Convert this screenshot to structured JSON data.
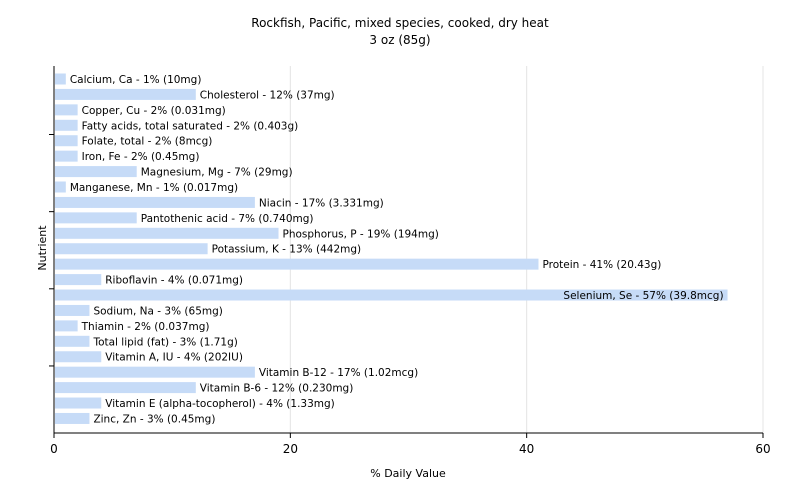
{
  "chart_data": {
    "type": "bar",
    "orientation": "horizontal",
    "title": "Rockfish, Pacific, mixed species, cooked, dry heat",
    "subtitle": "3 oz (85g)",
    "xlabel": "% Daily Value",
    "ylabel": "Nutrient",
    "xlim": [
      0,
      60
    ],
    "xticks": [
      0,
      20,
      40,
      60
    ],
    "grid": true,
    "bar_color": "#c6dbf7",
    "categories": [
      "Calcium, Ca",
      "Cholesterol",
      "Copper, Cu",
      "Fatty acids, total saturated",
      "Folate, total",
      "Iron, Fe",
      "Magnesium, Mg",
      "Manganese, Mn",
      "Niacin",
      "Pantothenic acid",
      "Phosphorus, P",
      "Potassium, K",
      "Protein",
      "Riboflavin",
      "Selenium, Se",
      "Sodium, Na",
      "Thiamin",
      "Total lipid (fat)",
      "Vitamin A, IU",
      "Vitamin B-12",
      "Vitamin B-6",
      "Vitamin E (alpha-tocopherol)",
      "Zinc, Zn"
    ],
    "values": [
      1,
      12,
      2,
      2,
      2,
      2,
      7,
      1,
      17,
      7,
      19,
      13,
      41,
      4,
      57,
      3,
      2,
      3,
      4,
      17,
      12,
      4,
      3
    ],
    "labels": [
      "Calcium, Ca - 1% (10mg)",
      "Cholesterol - 12% (37mg)",
      "Copper, Cu - 2% (0.031mg)",
      "Fatty acids, total saturated - 2% (0.403g)",
      "Folate, total - 2% (8mcg)",
      "Iron, Fe - 2% (0.45mg)",
      "Magnesium, Mg - 7% (29mg)",
      "Manganese, Mn - 1% (0.017mg)",
      "Niacin - 17% (3.331mg)",
      "Pantothenic acid - 7% (0.740mg)",
      "Phosphorus, P - 19% (194mg)",
      "Potassium, K - 13% (442mg)",
      "Protein - 41% (20.43g)",
      "Riboflavin - 4% (0.071mg)",
      "Selenium, Se - 57% (39.8mcg)",
      "Sodium, Na - 3% (65mg)",
      "Thiamin - 2% (0.037mg)",
      "Total lipid (fat) - 3% (1.71g)",
      "Vitamin A, IU - 4% (202IU)",
      "Vitamin B-12 - 17% (1.02mcg)",
      "Vitamin B-6 - 12% (0.230mg)",
      "Vitamin E (alpha-tocopherol) - 4% (1.33mg)",
      "Zinc, Zn - 3% (0.45mg)"
    ]
  }
}
